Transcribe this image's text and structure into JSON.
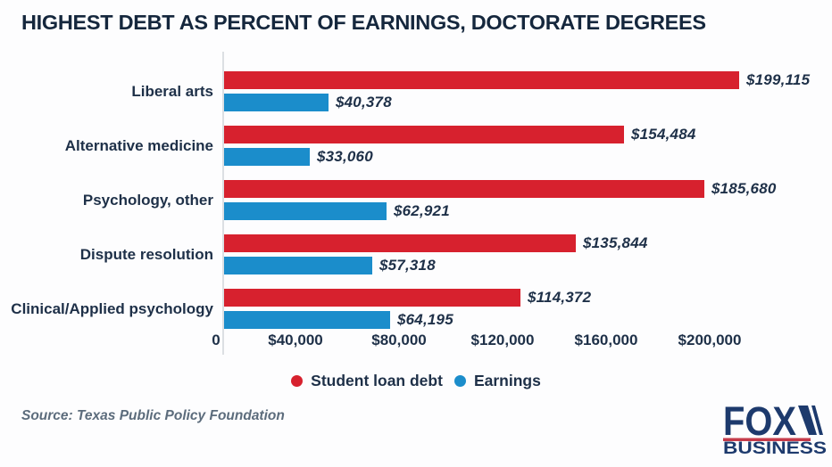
{
  "title": "HIGHEST DEBT AS PERCENT OF EARNINGS, DOCTORATE DEGREES",
  "source": "Source: Texas Public Policy Foundation",
  "logo": {
    "brand": "FOX",
    "sub": "BUSINESS",
    "navy": "#1d3a6d",
    "red_line": "#c53b4a"
  },
  "colors": {
    "debt": "#d7212e",
    "earnings": "#1b8dcb",
    "text": "#1e3048",
    "axis": "#dcdfe3"
  },
  "legend": [
    {
      "label": "Student loan debt",
      "color": "#d7212e"
    },
    {
      "label": "Earnings",
      "color": "#1b8dcb"
    }
  ],
  "chart_data": {
    "type": "bar",
    "orientation": "horizontal",
    "title": "HIGHEST DEBT AS PERCENT OF EARNINGS, DOCTORATE DEGREES",
    "categories": [
      "Liberal arts",
      "Alternative medicine",
      "Psychology, other",
      "Dispute resolution",
      "Clinical/Applied psychology"
    ],
    "series": [
      {
        "name": "Student loan debt",
        "color": "#d7212e",
        "values": [
          199115,
          154484,
          185680,
          135844,
          114372
        ],
        "labels": [
          "$199,115",
          "$154,484",
          "$185,680",
          "$135,844",
          "$114,372"
        ]
      },
      {
        "name": "Earnings",
        "color": "#1b8dcb",
        "values": [
          40378,
          33060,
          62921,
          57318,
          64195
        ],
        "labels": [
          "$40,378",
          "$33,060",
          "$62,921",
          "$57,318",
          "$64,195"
        ]
      }
    ],
    "x_axis": {
      "min": 0,
      "max": 200000,
      "ticks": [
        0,
        40000,
        80000,
        120000,
        160000,
        200000
      ],
      "tick_labels": [
        "0",
        "$40,000",
        "$80,000",
        "$120,000",
        "$160,000",
        "$200,000"
      ]
    },
    "grid": false,
    "legend_position": "bottom"
  }
}
